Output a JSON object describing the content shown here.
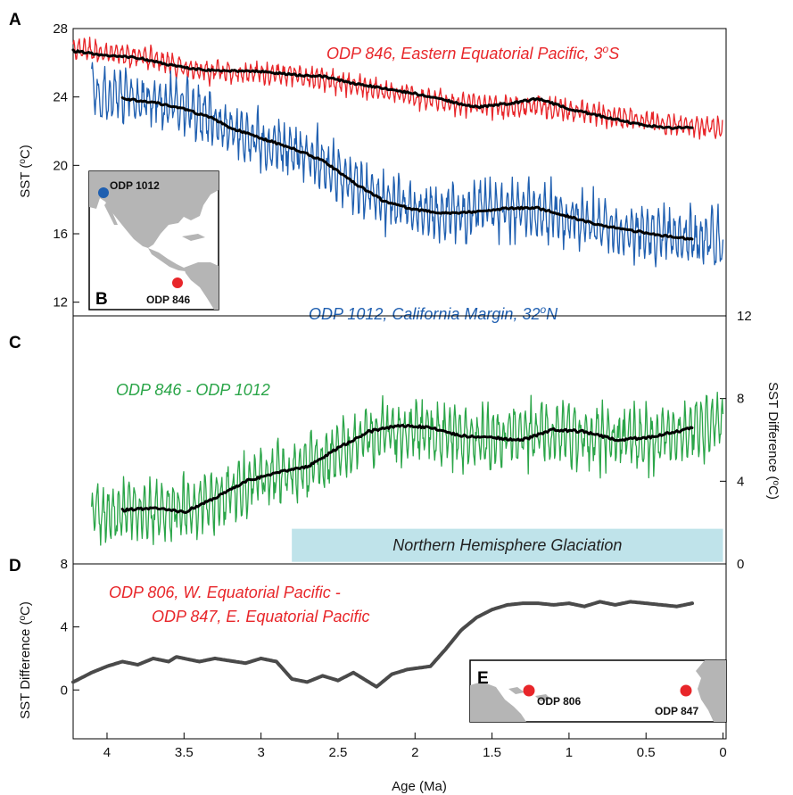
{
  "figure": {
    "x_axis_label": "Age (Ma)",
    "x_ticks": [
      "4",
      "3.5",
      "3",
      "2.5",
      "2",
      "1.5",
      "1",
      "0.5",
      "0"
    ],
    "colors": {
      "red": "#e8262a",
      "blue": "#1f5fb0",
      "green": "#2aa548",
      "black": "#000000",
      "gray": "#4a4a4a",
      "band": "#bfe3ea",
      "land": "#b5b5b5"
    }
  },
  "panels": {
    "A": {
      "letter": "A",
      "y_label": "SST (",
      "y_label_sup": "o",
      "y_label_end": "C)",
      "y_ticks": [
        "28",
        "24",
        "20",
        "16",
        "12"
      ],
      "series_846_label": "ODP 846, Eastern Equatorial Pacific, 3",
      "series_846_sup": "o",
      "series_846_end": "S",
      "series_1012_label": "ODP 1012, California Margin, 32",
      "series_1012_sup": "o",
      "series_1012_end": "N"
    },
    "B": {
      "letter": "B",
      "site_1012": "ODP 1012",
      "site_846": "ODP 846"
    },
    "C": {
      "letter": "C",
      "series_label": "ODP 846 - ODP 1012",
      "y_ticks_right": [
        "12",
        "8",
        "4",
        "0"
      ],
      "y_label_right": "SST  Difference (",
      "y_label_right_sup": "o",
      "y_label_right_end": "C)",
      "band_label": "Northern Hemisphere Glaciation"
    },
    "D": {
      "letter": "D",
      "series_label_1": "ODP 806, W. Equatorial Pacific -",
      "series_label_2": "ODP 847, E. Equatorial Pacific",
      "y_ticks": [
        "8",
        "4",
        "0"
      ],
      "y_label": "SST  Difference (",
      "y_label_sup": "o",
      "y_label_end": "C)"
    },
    "E": {
      "letter": "E",
      "site_806": "ODP 806",
      "site_847": "ODP 847"
    }
  },
  "chart_data": [
    {
      "panel": "A",
      "type": "line",
      "xlabel": "Age (Ma)",
      "ylabel": "SST (oC)",
      "xlim": [
        4.22,
        -0.02
      ],
      "ylim": [
        11.2,
        28
      ],
      "series": [
        {
          "name": "ODP 846, Eastern Equatorial Pacific, 3oS",
          "color": "#e8262a",
          "style": "noisy",
          "x": [
            4.22,
            4.0,
            3.8,
            3.6,
            3.4,
            3.2,
            3.0,
            2.8,
            2.6,
            2.4,
            2.2,
            2.0,
            1.8,
            1.6,
            1.4,
            1.2,
            1.0,
            0.8,
            0.6,
            0.4,
            0.2,
            0.0
          ],
          "y": [
            26.8,
            26.6,
            26.4,
            26.0,
            25.5,
            25.4,
            25.4,
            25.3,
            25.0,
            24.7,
            24.3,
            24.0,
            23.7,
            23.6,
            23.4,
            23.5,
            23.2,
            23.0,
            22.7,
            22.5,
            22.3,
            22.2
          ],
          "amplitude": 0.9
        },
        {
          "name": "ODP 846 smoothed",
          "color": "#000000",
          "style": "smooth",
          "x": [
            4.22,
            4.0,
            3.8,
            3.6,
            3.4,
            3.2,
            3.0,
            2.8,
            2.6,
            2.4,
            2.2,
            2.0,
            1.8,
            1.6,
            1.4,
            1.2,
            1.0,
            0.8,
            0.6,
            0.4,
            0.2
          ],
          "y": [
            26.7,
            26.4,
            26.3,
            25.9,
            25.6,
            25.5,
            25.5,
            25.3,
            25.2,
            24.8,
            24.5,
            24.2,
            23.8,
            23.4,
            23.6,
            23.9,
            23.3,
            22.9,
            22.5,
            22.2,
            22.2
          ]
        },
        {
          "name": "ODP 1012, California Margin, 32oN",
          "color": "#1f5fb0",
          "style": "noisy",
          "x": [
            4.1,
            3.9,
            3.7,
            3.5,
            3.3,
            3.1,
            2.9,
            2.7,
            2.5,
            2.3,
            2.1,
            1.9,
            1.7,
            1.5,
            1.3,
            1.1,
            0.9,
            0.7,
            0.5,
            0.3,
            0.1,
            0.0
          ],
          "y": [
            24.3,
            24.0,
            23.7,
            23.3,
            22.7,
            21.6,
            21.1,
            20.6,
            19.5,
            18.4,
            17.7,
            17.2,
            17.3,
            17.5,
            17.4,
            17.2,
            16.7,
            16.3,
            16.0,
            15.8,
            15.6,
            15.5
          ],
          "amplitude": 2.3
        },
        {
          "name": "ODP 1012 smoothed",
          "color": "#000000",
          "style": "smooth",
          "x": [
            3.9,
            3.7,
            3.5,
            3.3,
            3.2,
            3.0,
            2.8,
            2.6,
            2.4,
            2.2,
            2.0,
            1.8,
            1.6,
            1.4,
            1.2,
            1.0,
            0.8,
            0.6,
            0.4,
            0.2
          ],
          "y": [
            23.9,
            23.7,
            23.3,
            22.7,
            22.2,
            21.6,
            21.0,
            20.3,
            19.0,
            17.9,
            17.4,
            17.2,
            17.3,
            17.5,
            17.5,
            17.0,
            16.5,
            16.2,
            15.9,
            15.7
          ]
        }
      ]
    },
    {
      "panel": "C",
      "type": "line",
      "xlabel": "Age (Ma)",
      "ylabel": "SST  Difference (oC)",
      "xlim": [
        4.22,
        -0.02
      ],
      "ylim": [
        0,
        12
      ],
      "band": {
        "x": [
          2.8,
          0.0
        ],
        "y": [
          0.1,
          1.7
        ],
        "label": "Northern Hemisphere Glaciation"
      },
      "series": [
        {
          "name": "ODP 846 - ODP 1012",
          "color": "#2aa548",
          "style": "noisy",
          "x": [
            4.1,
            3.9,
            3.7,
            3.5,
            3.3,
            3.1,
            2.9,
            2.7,
            2.5,
            2.3,
            2.1,
            1.9,
            1.7,
            1.5,
            1.3,
            1.1,
            0.9,
            0.7,
            0.5,
            0.3,
            0.1,
            0.0
          ],
          "y": [
            2.4,
            2.5,
            2.6,
            2.7,
            3.1,
            3.8,
            4.4,
            4.6,
            5.4,
            6.2,
            6.5,
            6.4,
            6.1,
            6.0,
            6.3,
            6.4,
            6.2,
            6.0,
            6.1,
            6.3,
            6.6,
            6.7
          ],
          "amplitude": 2.1
        },
        {
          "name": "ODP 846 - ODP 1012 smoothed",
          "color": "#000000",
          "style": "smooth",
          "x": [
            3.9,
            3.7,
            3.5,
            3.3,
            3.1,
            2.9,
            2.7,
            2.5,
            2.3,
            2.1,
            1.9,
            1.7,
            1.5,
            1.3,
            1.1,
            0.9,
            0.7,
            0.5,
            0.3,
            0.2
          ],
          "y": [
            2.6,
            2.7,
            2.5,
            3.2,
            4.0,
            4.4,
            4.7,
            5.6,
            6.4,
            6.7,
            6.6,
            6.2,
            6.1,
            6.0,
            6.5,
            6.4,
            6.0,
            6.1,
            6.4,
            6.6
          ]
        }
      ]
    },
    {
      "panel": "D",
      "type": "line",
      "xlabel": "Age (Ma)",
      "ylabel": "SST  Difference (oC)",
      "xlim": [
        4.22,
        -0.02
      ],
      "ylim": [
        -3.1,
        8
      ],
      "series": [
        {
          "name": "ODP 806, W. Equatorial Pacific - ODP 847, E. Equatorial Pacific",
          "color": "#4a4a4a",
          "style": "thick",
          "x": [
            4.22,
            4.1,
            4.0,
            3.9,
            3.8,
            3.7,
            3.6,
            3.55,
            3.4,
            3.3,
            3.1,
            3.0,
            2.9,
            2.8,
            2.7,
            2.6,
            2.5,
            2.4,
            2.3,
            2.25,
            2.15,
            2.05,
            1.9,
            1.8,
            1.7,
            1.6,
            1.5,
            1.4,
            1.3,
            1.2,
            1.1,
            1.0,
            0.9,
            0.8,
            0.7,
            0.6,
            0.5,
            0.4,
            0.3,
            0.2
          ],
          "y": [
            0.5,
            1.1,
            1.5,
            1.8,
            1.6,
            2.0,
            1.8,
            2.1,
            1.8,
            2.0,
            1.7,
            2.0,
            1.8,
            0.7,
            0.5,
            0.9,
            0.6,
            1.1,
            0.5,
            0.2,
            1.0,
            1.3,
            1.5,
            2.6,
            3.8,
            4.6,
            5.1,
            5.4,
            5.5,
            5.5,
            5.4,
            5.5,
            5.3,
            5.6,
            5.4,
            5.6,
            5.5,
            5.4,
            5.3,
            5.5
          ]
        }
      ]
    }
  ]
}
